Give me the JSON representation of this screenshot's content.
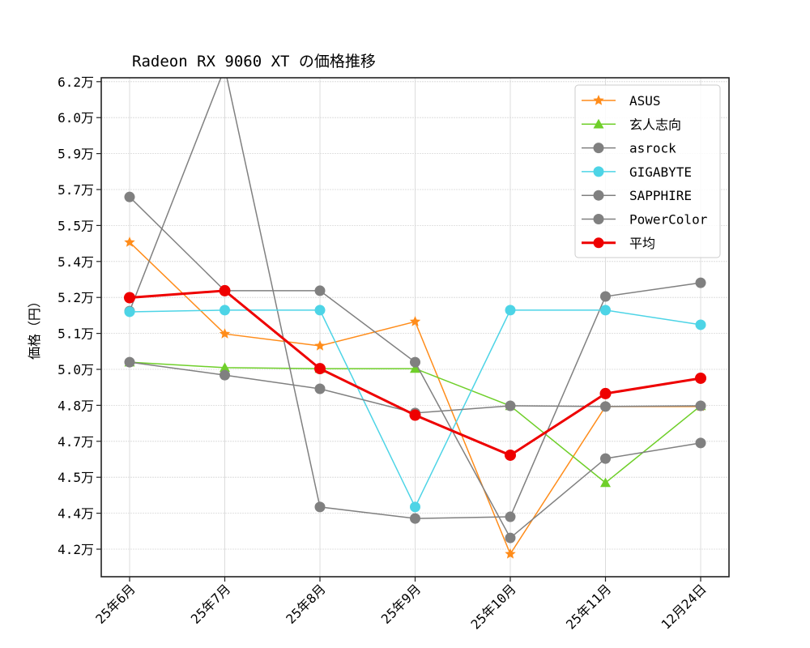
{
  "chart_data": {
    "type": "line",
    "title": "Radeon RX 9060 XT の価格推移",
    "xlabel": "",
    "ylabel": "価格（円）",
    "categories": [
      "25年6月",
      "25年7月",
      "25年8月",
      "25年9月",
      "25年10月",
      "25年11月",
      "12月24日"
    ],
    "ylim": [
      40950,
      61660
    ],
    "yticks": [
      {
        "value": 42000,
        "label": "4.2万"
      },
      {
        "value": 43500,
        "label": "4.4万"
      },
      {
        "value": 45000,
        "label": "4.5万"
      },
      {
        "value": 46500,
        "label": "4.7万"
      },
      {
        "value": 48000,
        "label": "4.8万"
      },
      {
        "value": 49500,
        "label": "5.0万"
      },
      {
        "value": 51000,
        "label": "5.1万"
      },
      {
        "value": 52500,
        "label": "5.2万"
      },
      {
        "value": 54000,
        "label": "5.4万"
      },
      {
        "value": 55500,
        "label": "5.5万"
      },
      {
        "value": 57000,
        "label": "5.7万"
      },
      {
        "value": 58500,
        "label": "5.9万"
      },
      {
        "value": 60000,
        "label": "6.0万"
      },
      {
        "value": 61500,
        "label": "6.2万"
      }
    ],
    "grid": true,
    "legend_position": "upper right",
    "series": [
      {
        "name": "ASUS",
        "color": "#ff8c1a",
        "marker": "star",
        "linewidth": 1.5,
        "values": [
          54800,
          50980,
          50480,
          51490,
          41800,
          47950,
          47950
        ]
      },
      {
        "name": "玄人志向",
        "color": "#6fcf2a",
        "marker": "triangle",
        "linewidth": 1.5,
        "values": [
          49800,
          49570,
          49530,
          49530,
          47980,
          44770,
          47980
        ]
      },
      {
        "name": "asrock",
        "color": "#808080",
        "marker": "circle",
        "linewidth": 1.5,
        "values": [
          51930,
          62070,
          43760,
          43280,
          43350,
          52540,
          53110
        ]
      },
      {
        "name": "GIGABYTE",
        "color": "#4dd4e6",
        "marker": "circle",
        "linewidth": 1.5,
        "values": [
          51900,
          51970,
          51970,
          43760,
          51970,
          51970,
          51360
        ]
      },
      {
        "name": "SAPPHIRE",
        "color": "#808080",
        "marker": "circle",
        "linewidth": 1.5,
        "values": [
          56690,
          52780,
          52780,
          49800,
          42470,
          45780,
          46430
        ]
      },
      {
        "name": "PowerColor",
        "color": "#808080",
        "marker": "circle",
        "linewidth": 1.5,
        "values": [
          49800,
          49260,
          48690,
          47680,
          47980,
          47950,
          47980
        ]
      },
      {
        "name": "平均",
        "color": "#ee0000",
        "marker": "circle",
        "linewidth": 3,
        "values": [
          52490,
          52780,
          49530,
          47590,
          45920,
          48490,
          49130
        ]
      }
    ]
  }
}
